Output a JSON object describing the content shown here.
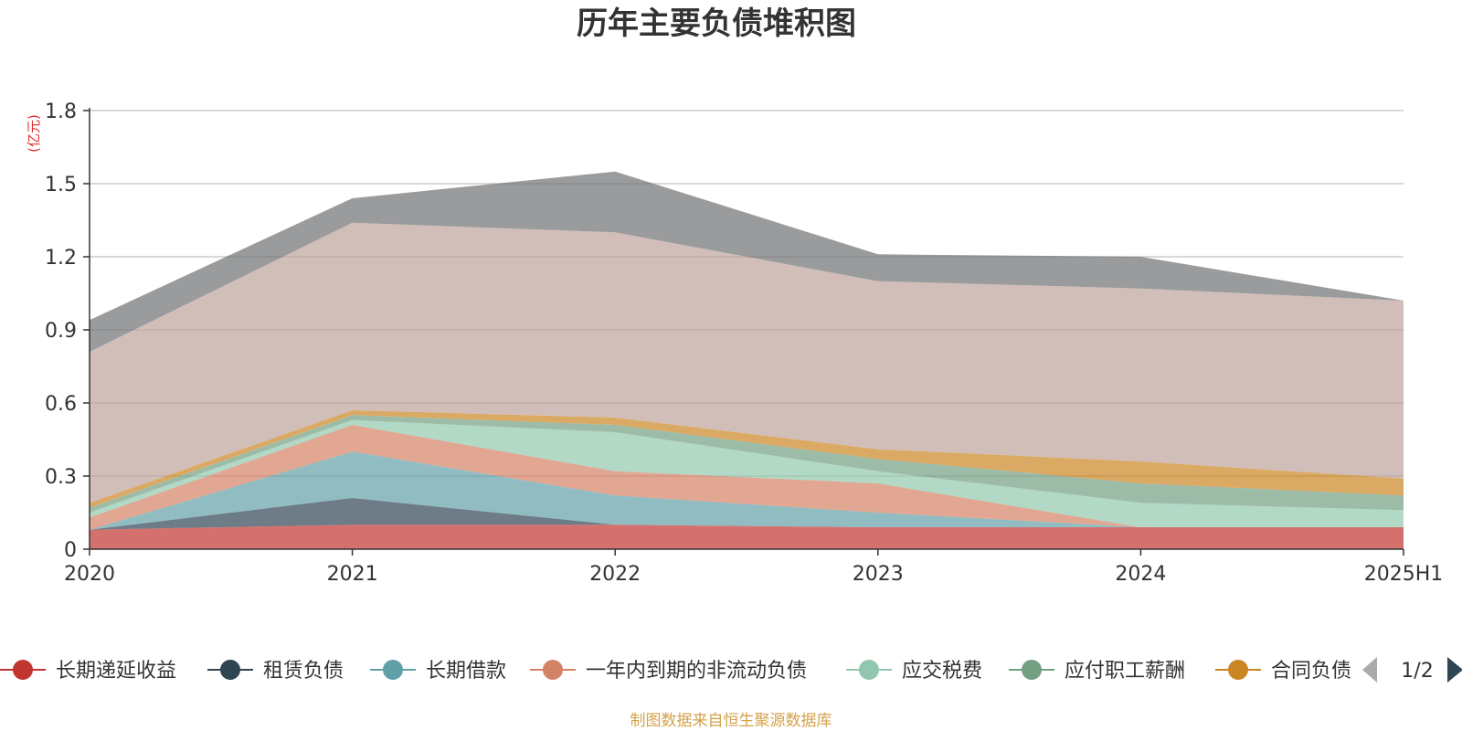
{
  "chart_data": {
    "type": "area",
    "stacked": true,
    "title": "历年主要负债堆积图",
    "y_unit": "(亿元)",
    "categories": [
      "2020",
      "2021",
      "2022",
      "2023",
      "2024",
      "2025H1"
    ],
    "y_ticks": [
      "0",
      "0.3",
      "0.6",
      "0.9",
      "1.2",
      "1.5",
      "1.8"
    ],
    "ylim": [
      0,
      1.8
    ],
    "grid": true,
    "legend_position": "bottom",
    "series": [
      {
        "name": "长期递延收益",
        "color": "#c23531",
        "values": [
          0.08,
          0.1,
          0.1,
          0.09,
          0.09,
          0.09
        ]
      },
      {
        "name": "租赁负债",
        "color": "#2f4554",
        "values": [
          0.0,
          0.11,
          0.0,
          0.0,
          0.0,
          0.0
        ]
      },
      {
        "name": "长期借款",
        "color": "#61a0a8",
        "values": [
          0.0,
          0.19,
          0.12,
          0.06,
          0.0,
          0.0
        ]
      },
      {
        "name": "一年内到期的非流动负债",
        "color": "#d48265",
        "values": [
          0.05,
          0.11,
          0.1,
          0.12,
          0.0,
          0.0
        ]
      },
      {
        "name": "应交税费",
        "color": "#91c7ae",
        "values": [
          0.02,
          0.02,
          0.16,
          0.05,
          0.1,
          0.07
        ]
      },
      {
        "name": "应付职工薪酬",
        "color": "#749f83",
        "values": [
          0.02,
          0.02,
          0.03,
          0.05,
          0.08,
          0.06
        ]
      },
      {
        "name": "合同负债",
        "color": "#ca8622",
        "values": [
          0.02,
          0.02,
          0.03,
          0.04,
          0.09,
          0.07
        ]
      },
      {
        "name": "",
        "color": "#bda29a",
        "values": [
          0.62,
          0.77,
          0.76,
          0.69,
          0.71,
          0.73
        ]
      },
      {
        "name": "",
        "color": "#6e7074",
        "values": [
          0.13,
          0.1,
          0.25,
          0.11,
          0.13,
          0.0
        ]
      }
    ]
  },
  "legend": {
    "page_indicator": "1/2",
    "prev_icon": "triangle-left-icon",
    "next_icon": "triangle-right-icon"
  },
  "source_note": "制图数据来自恒生聚源数据库"
}
